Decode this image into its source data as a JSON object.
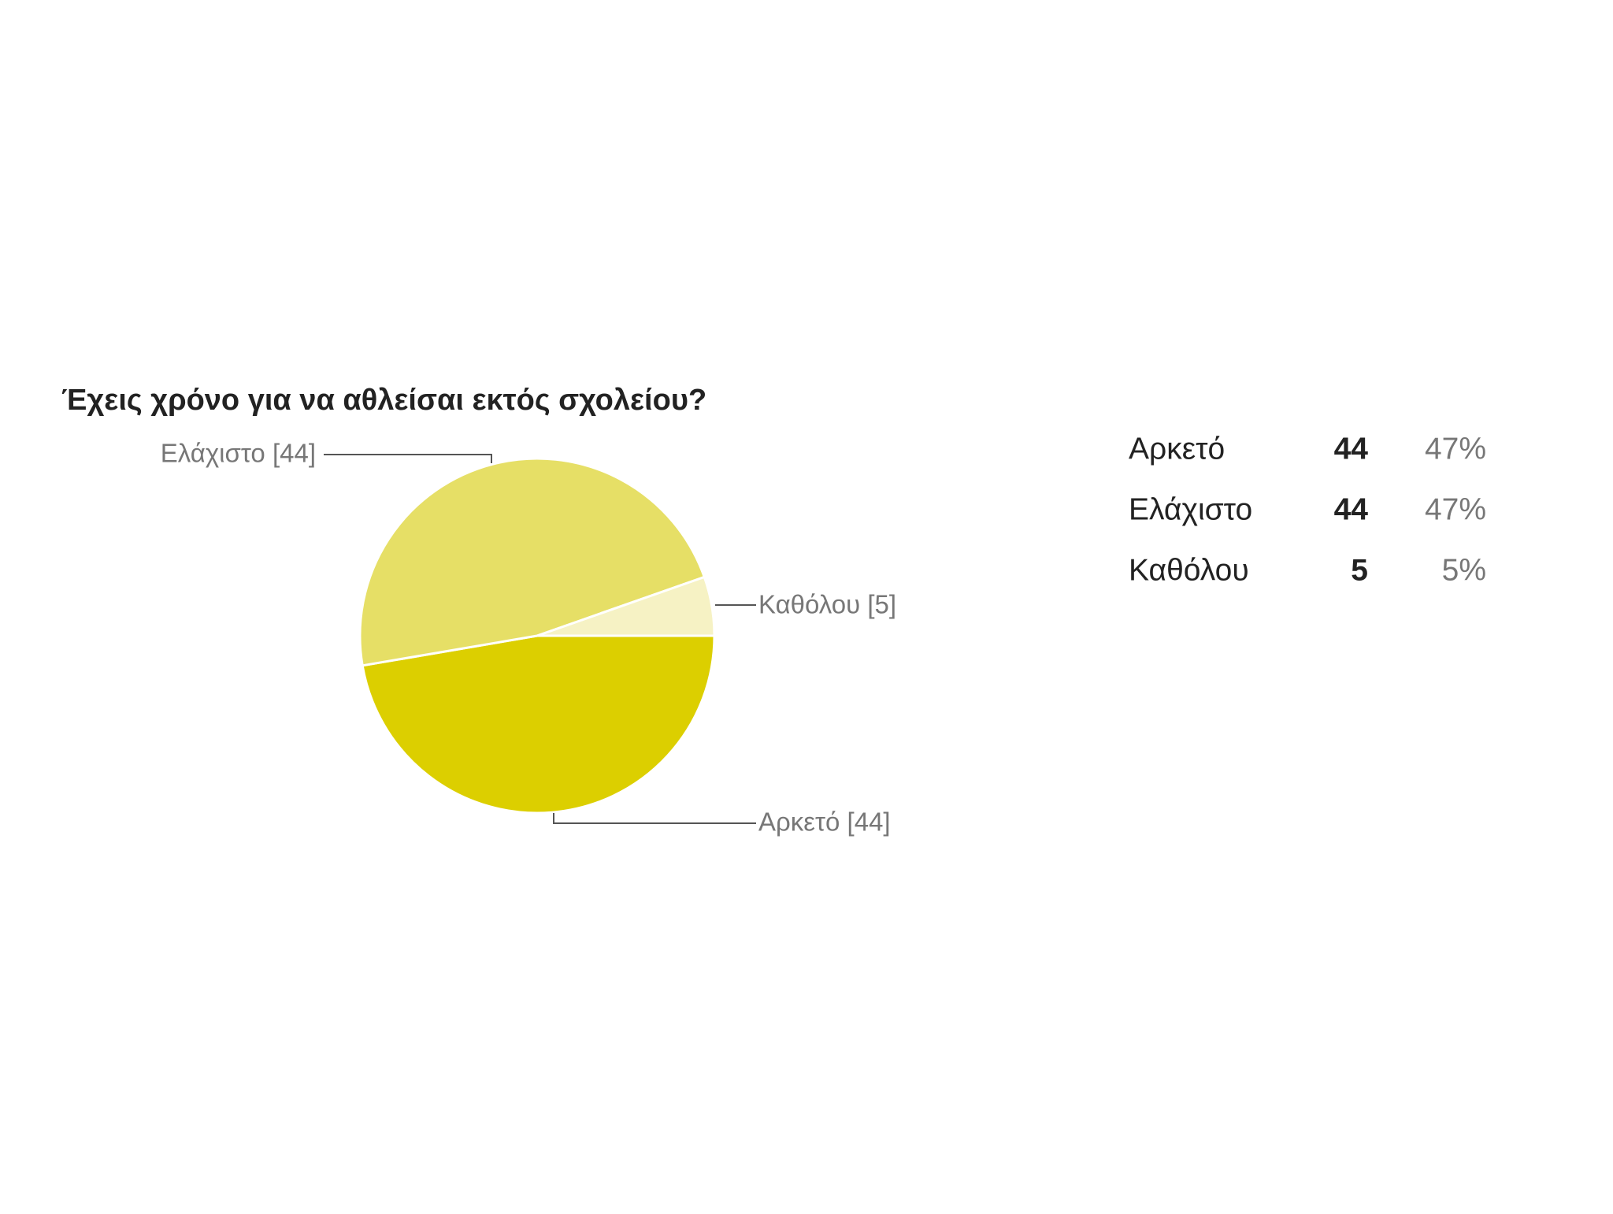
{
  "chart_data": {
    "type": "pie",
    "title": "Έχεις χρόνο για να αθλείσαι εκτός σχολείου?",
    "categories": [
      "Αρκετό",
      "Ελάχιστο",
      "Καθόλου"
    ],
    "values": [
      44,
      44,
      5
    ],
    "slice_labels": [
      "Αρκετό [44]",
      "Ελάχιστο [44]",
      "Καθόλου [5]"
    ],
    "colors": [
      "#dccf00",
      "#e6df66",
      "#f6f2c4"
    ],
    "percents": [
      47,
      47,
      5
    ],
    "percent_labels": [
      "47%",
      "47%",
      "5%"
    ]
  }
}
